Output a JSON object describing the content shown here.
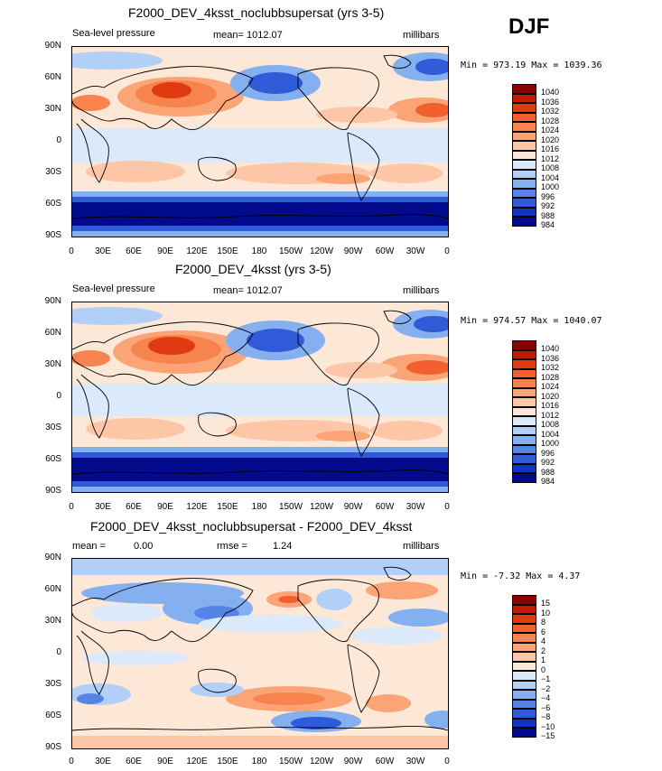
{
  "season": "DJF",
  "panels": [
    {
      "title": "F2000_DEV_4ksst_noclubbsupersat (yrs 3-5)",
      "variable": "Sea-level pressure",
      "mean_text": "mean= 1012.07",
      "units": "millibars",
      "minmax": "Min = 973.19 Max = 1039.36",
      "colorbar_labels": [
        "1040",
        "1036",
        "1032",
        "1028",
        "1024",
        "1020",
        "1016",
        "1012",
        "1008",
        "1004",
        "1000",
        "996",
        "992",
        "988",
        "984"
      ],
      "colors": [
        "#8b0000",
        "#c01a00",
        "#e03a10",
        "#f26030",
        "#f7844f",
        "#fba476",
        "#fdc6a6",
        "#fde8d8",
        "#dbe9fb",
        "#b2d0f7",
        "#84b0f0",
        "#5584e6",
        "#2f5ad8",
        "#1232c2",
        "#000a8a"
      ]
    },
    {
      "title": "F2000_DEV_4ksst (yrs 3-5)",
      "variable": "Sea-level pressure",
      "mean_text": "mean= 1012.07",
      "units": "millibars",
      "minmax": "Min = 974.57 Max = 1040.07",
      "colorbar_labels": [
        "1040",
        "1036",
        "1032",
        "1028",
        "1024",
        "1020",
        "1016",
        "1012",
        "1008",
        "1004",
        "1000",
        "996",
        "992",
        "988",
        "984"
      ],
      "colors": [
        "#8b0000",
        "#c01a00",
        "#e03a10",
        "#f26030",
        "#f7844f",
        "#fba476",
        "#fdc6a6",
        "#fde8d8",
        "#dbe9fb",
        "#b2d0f7",
        "#84b0f0",
        "#5584e6",
        "#2f5ad8",
        "#1232c2",
        "#000a8a"
      ]
    },
    {
      "title": "F2000_DEV_4ksst_noclubbsupersat - F2000_DEV_4ksst",
      "mean_label": "mean =",
      "mean_value": "0.00",
      "rmse_label": "rmse =",
      "rmse_value": "1.24",
      "units": "millibars",
      "minmax": "Min =  -7.32 Max =   4.37",
      "colorbar_labels": [
        "15",
        "10",
        "8",
        "6",
        "4",
        "2",
        "1",
        "0",
        "−1",
        "−2",
        "−4",
        "−6",
        "−8",
        "−10",
        "−15"
      ],
      "colors": [
        "#8b0000",
        "#c01a00",
        "#e03a10",
        "#f26030",
        "#f7844f",
        "#fba476",
        "#fdc6a6",
        "#fde8d8",
        "#dbe9fb",
        "#b2d0f7",
        "#84b0f0",
        "#5584e6",
        "#2f5ad8",
        "#1232c2",
        "#000a8a"
      ]
    }
  ],
  "lat_labels": [
    "90N",
    "60N",
    "30N",
    "0",
    "30S",
    "60S",
    "90S"
  ],
  "lon_labels": [
    "0",
    "30E",
    "60E",
    "90E",
    "120E",
    "150E",
    "180",
    "150W",
    "120W",
    "90W",
    "60W",
    "30W",
    "0"
  ]
}
